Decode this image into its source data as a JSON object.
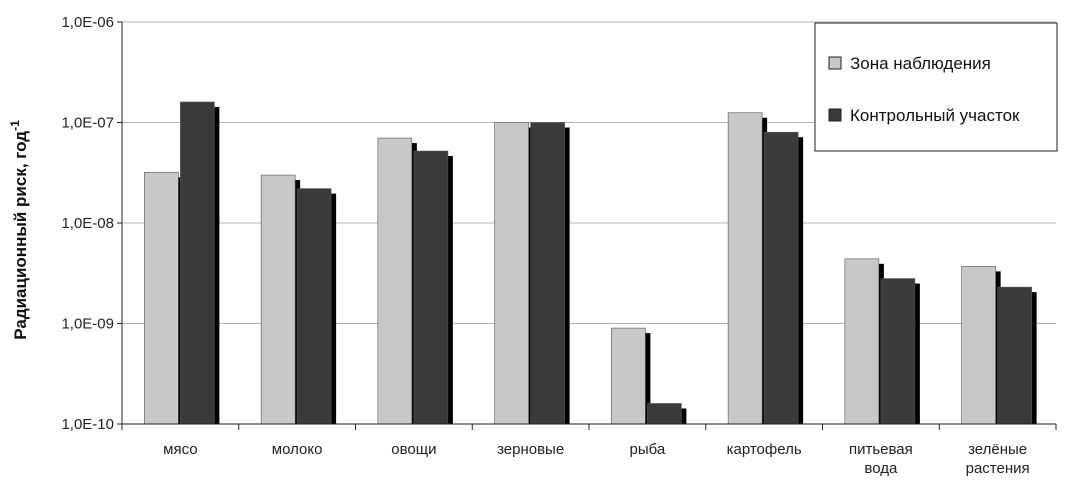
{
  "chart_data": {
    "type": "bar",
    "y_scale": "log",
    "ylim": [
      1e-10,
      1e-06
    ],
    "y_ticks": [
      "1,0E-06",
      "1,0E-07",
      "1,0E-08",
      "1,0E-09",
      "1,0E-10"
    ],
    "y_tick_values": [
      1e-06,
      1e-07,
      1e-08,
      1e-09,
      1e-10
    ],
    "ylabel": "Радиационный риск, год",
    "ylabel_superscript": "-1",
    "grid": true,
    "legend_position": "top-right",
    "categories": [
      [
        "мясо"
      ],
      [
        "молоко"
      ],
      [
        "овощи"
      ],
      [
        "зерновые"
      ],
      [
        "рыба"
      ],
      [
        "картофель"
      ],
      [
        "питьевая",
        "вода"
      ],
      [
        "зелёные",
        "растения"
      ]
    ],
    "series": [
      {
        "name": "Зона наблюдения",
        "color": "#c8c8c8",
        "values": [
          3.2e-08,
          3e-08,
          7e-08,
          1e-07,
          9e-10,
          1.25e-07,
          4.4e-09,
          3.7e-09
        ]
      },
      {
        "name": "Контрольный участок",
        "color": "#3a3a3a",
        "values": [
          1.6e-07,
          2.2e-08,
          5.2e-08,
          1e-07,
          1.6e-10,
          8e-08,
          2.8e-09,
          2.3e-09
        ]
      }
    ]
  }
}
